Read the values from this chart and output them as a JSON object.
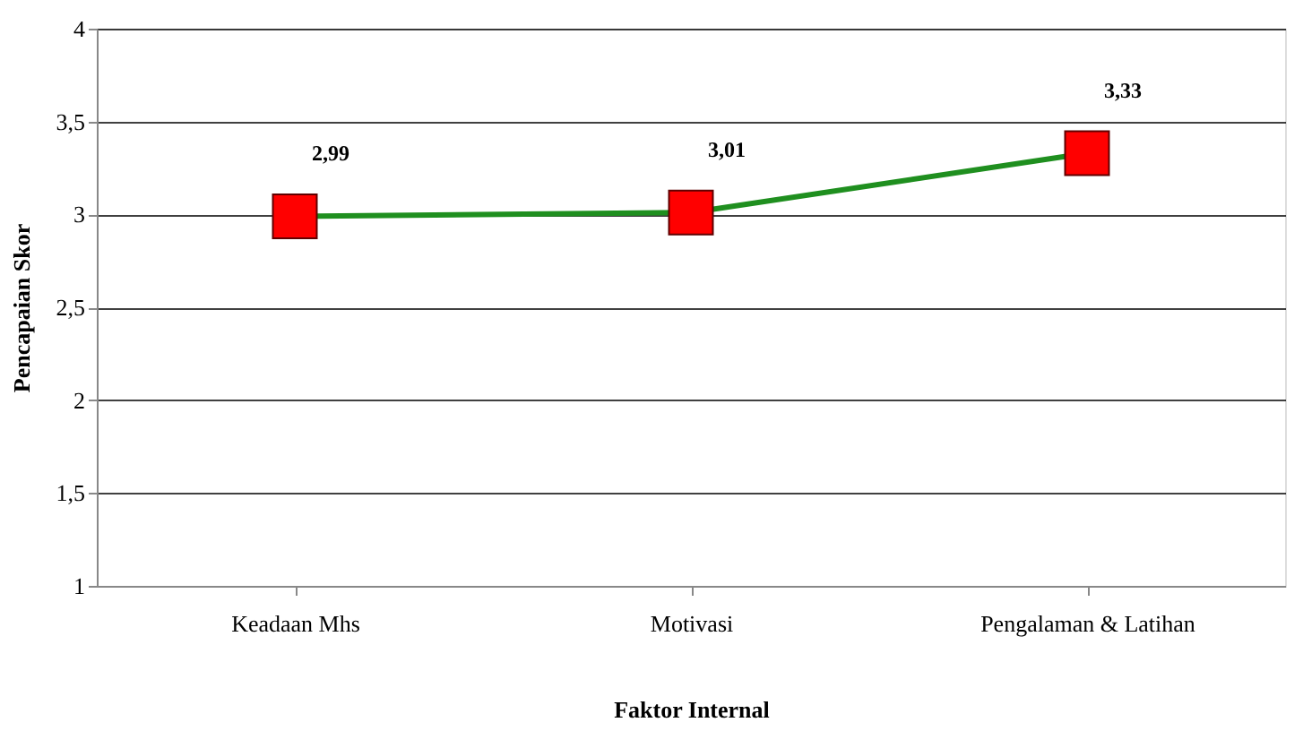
{
  "chart_data": {
    "type": "line",
    "xlabel": "Faktor Internal",
    "ylabel": "Pencapaian Skor",
    "categories": [
      "Keadaan Mhs",
      "Motivasi",
      "Pengalaman & Latihan"
    ],
    "series": [
      {
        "color": "#1f8f1f",
        "values": [
          2.99,
          3.01,
          3.33
        ]
      }
    ],
    "colors": [
      "#ff0000",
      "#ff0000",
      "#ff0000"
    ],
    "value_labels": [
      "2,99",
      "3,01",
      "3,33"
    ],
    "ylim": [
      1,
      4
    ],
    "yticks": [
      1,
      {
        "value": 1.5,
        "label": "1,5"
      },
      2,
      {
        "value": 2.5,
        "label": "2,5"
      },
      3,
      {
        "value": 3.5,
        "label": "3,5"
      },
      4
    ],
    "grid": "y",
    "marker": "square",
    "line_style": "solid",
    "legend": false
  }
}
